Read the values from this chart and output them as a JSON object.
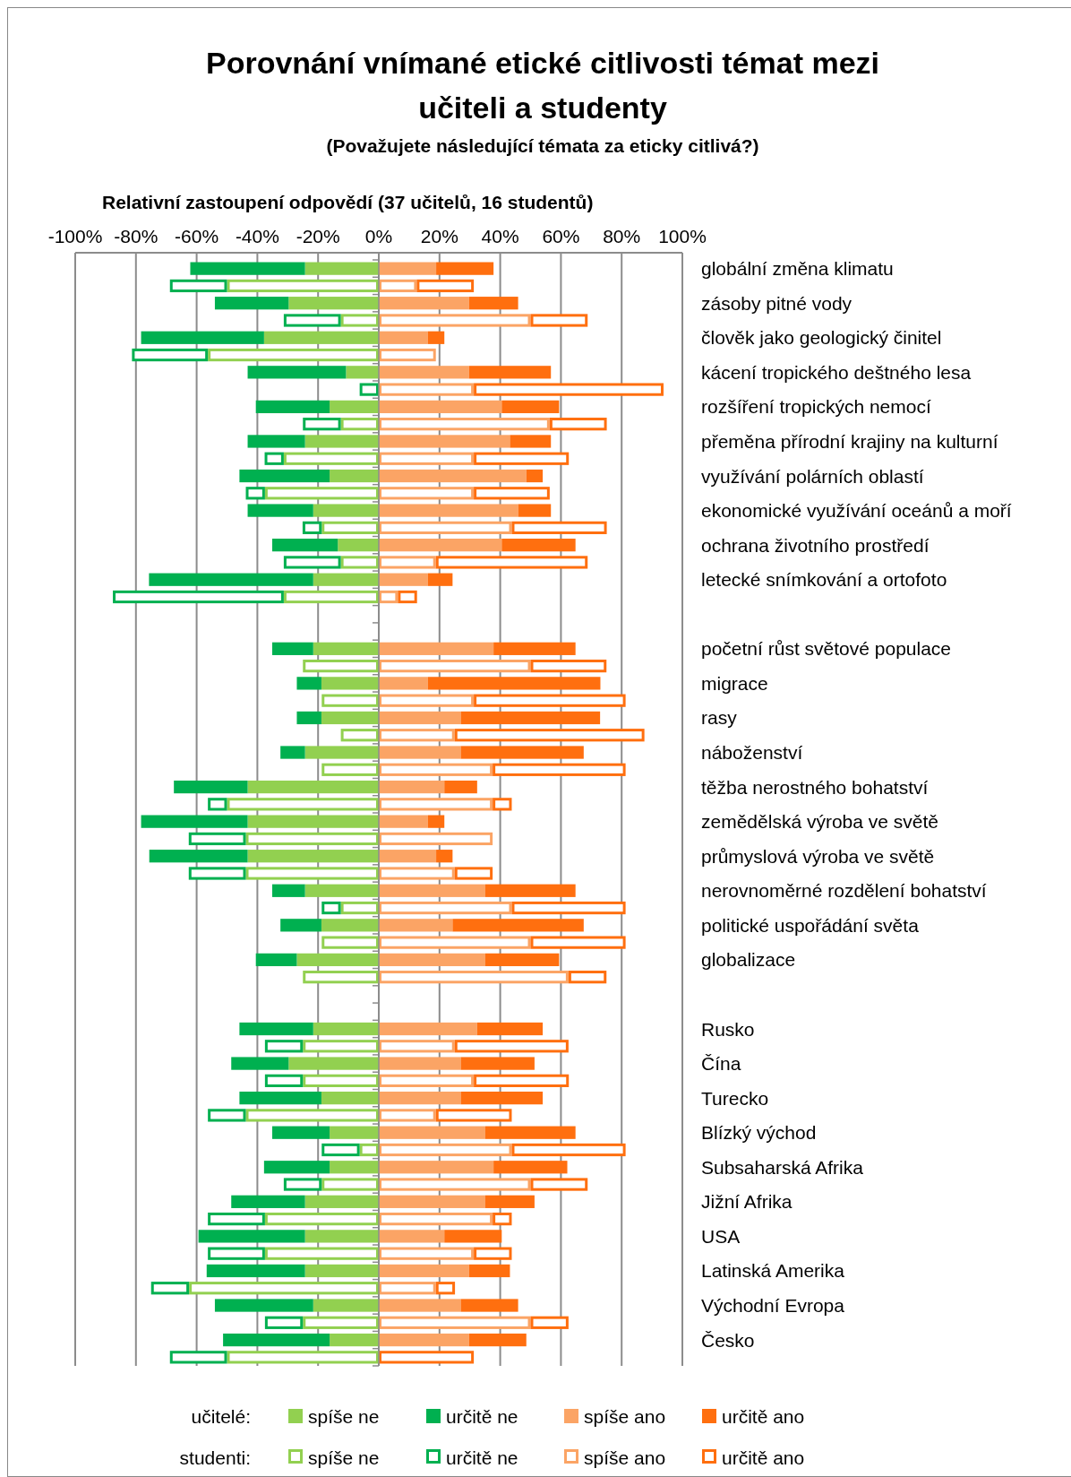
{
  "chart_data": {
    "type": "bar",
    "orientation": "horizontal",
    "stacked": true,
    "title": "Porovnání vnímané etické citlivosti témat mezi učiteli a studenty",
    "subtitle": "(Považujete následující témata za eticky citlivá?)",
    "xlabel": "Relativní zastoupení odpovědí (37 učitelů, 16 studentů)",
    "annotations": [
      "učitelé:",
      "studenti:"
    ],
    "categories": [
      "globální změna klimatu",
      null,
      "zásoby pitné vody",
      null,
      "člověk jako geologický činitel",
      null,
      "kácení tropického deštného lesa",
      null,
      "rozšíření tropických nemocí",
      null,
      "přeměna přírodní krajiny na kulturní",
      null,
      "využívání polárních oblastí",
      null,
      "ekonomické využívání oceánů a moří",
      null,
      "ochrana životního prostředí",
      null,
      "letecké snímkování a ortofoto",
      null,
      null,
      null,
      "početní růst světové populace",
      null,
      "migrace",
      null,
      "rasy",
      null,
      "náboženství",
      null,
      "těžba nerostného bohatství",
      null,
      "zemědělská výroba ve světě",
      null,
      "průmyslová výroba ve světě",
      null,
      "nerovnoměrné rozdělení bohatství",
      null,
      "politické uspořádání světa",
      null,
      "globalizace",
      null,
      null,
      null,
      "Rusko",
      null,
      "Čína",
      null,
      "Turecko",
      null,
      "Blízký východ",
      null,
      "Subsaharská Afrika",
      null,
      "Jižní Afrika",
      null,
      "USA",
      null,
      "Latinská Amerika",
      null,
      "Východní Evropa",
      null,
      "Česko",
      null
    ],
    "series": [
      {
        "name": "spíše ne",
        "color": "#92d050",
        "values": [
          -24.3,
          null,
          -29.7,
          null,
          -37.8,
          null,
          -10.8,
          null,
          -16.2,
          null,
          -24.3,
          null,
          -16.2,
          null,
          -21.6,
          null,
          -13.5,
          null,
          -21.6,
          null,
          null,
          null,
          -21.6,
          null,
          -18.9,
          null,
          -18.9,
          null,
          -24.3,
          null,
          -43.2,
          null,
          -43.2,
          null,
          -43.2,
          null,
          -24.3,
          null,
          -18.9,
          null,
          -27.0,
          null,
          null,
          null,
          -21.6,
          null,
          -29.7,
          null,
          -18.9,
          null,
          -16.2,
          null,
          -16.2,
          null,
          -24.3,
          null,
          -24.3,
          null,
          -24.3,
          null,
          -21.6,
          null,
          -16.2,
          null
        ]
      },
      {
        "name": "určitě ne",
        "color": "#00b050",
        "values": [
          -37.8,
          null,
          -24.3,
          null,
          -40.5,
          null,
          -32.4,
          null,
          -24.3,
          null,
          -18.9,
          null,
          -29.7,
          null,
          -21.6,
          null,
          -21.6,
          null,
          -54.1,
          null,
          null,
          null,
          -13.5,
          null,
          -8.1,
          null,
          -8.1,
          null,
          -8.1,
          null,
          -24.3,
          null,
          -35.1,
          null,
          -32.4,
          null,
          -10.8,
          null,
          -13.5,
          null,
          -13.5,
          null,
          null,
          null,
          -24.3,
          null,
          -18.9,
          null,
          -27.0,
          null,
          -18.9,
          null,
          -21.6,
          null,
          -24.3,
          null,
          -35.1,
          null,
          -32.4,
          null,
          -32.4,
          null,
          -35.1,
          null
        ]
      },
      {
        "name": "spíše ano",
        "color": "#fba465",
        "values": [
          18.9,
          null,
          29.7,
          null,
          16.2,
          null,
          29.7,
          null,
          40.5,
          null,
          43.2,
          null,
          48.6,
          null,
          45.9,
          null,
          40.5,
          null,
          16.2,
          null,
          null,
          null,
          37.8,
          null,
          16.2,
          null,
          27.0,
          null,
          27.0,
          null,
          21.6,
          null,
          16.2,
          null,
          18.9,
          null,
          35.1,
          null,
          24.3,
          null,
          35.1,
          null,
          null,
          null,
          32.4,
          null,
          27.0,
          null,
          27.0,
          null,
          35.1,
          null,
          37.8,
          null,
          35.1,
          null,
          21.6,
          null,
          29.7,
          null,
          27.0,
          null,
          29.7,
          null
        ]
      },
      {
        "name": "určitě ano",
        "color": "#ff6f0f",
        "values": [
          18.9,
          null,
          16.2,
          null,
          5.4,
          null,
          27.0,
          null,
          18.9,
          null,
          13.5,
          null,
          5.4,
          null,
          10.8,
          null,
          24.3,
          null,
          8.1,
          null,
          null,
          null,
          27.0,
          null,
          56.8,
          null,
          45.9,
          null,
          40.5,
          null,
          10.8,
          null,
          5.4,
          null,
          5.4,
          null,
          29.7,
          null,
          43.2,
          null,
          24.3,
          null,
          null,
          null,
          21.6,
          null,
          24.3,
          null,
          27.0,
          null,
          29.7,
          null,
          24.3,
          null,
          16.2,
          null,
          18.9,
          null,
          13.5,
          null,
          18.9,
          null,
          18.9,
          null
        ]
      },
      {
        "name": "spíše ne",
        "color": "#92d050",
        "values": [
          null,
          -50,
          null,
          -12.5,
          null,
          -56.3,
          null,
          0,
          null,
          -12.5,
          null,
          -31.3,
          null,
          -37.5,
          null,
          -18.8,
          null,
          -12.5,
          null,
          -31.3,
          null,
          null,
          null,
          -25,
          null,
          -18.8,
          null,
          -12.5,
          null,
          -18.8,
          null,
          -50,
          null,
          -43.8,
          null,
          -43.8,
          null,
          -12.5,
          null,
          -18.8,
          null,
          -25,
          null,
          null,
          null,
          -25,
          null,
          -25,
          null,
          -43.8,
          null,
          -6.3,
          null,
          -18.8,
          null,
          -37.5,
          null,
          -37.5,
          null,
          -62.5,
          null,
          -25,
          null,
          -50
        ]
      },
      {
        "name": "určitě ne",
        "color": "#00b050",
        "values": [
          null,
          -18.8,
          null,
          -18.8,
          null,
          -25,
          null,
          -6.3,
          null,
          -12.5,
          null,
          -6.3,
          null,
          -6.3,
          null,
          -6.3,
          null,
          -18.8,
          null,
          -56.3,
          null,
          null,
          null,
          0,
          null,
          0,
          null,
          0,
          null,
          0,
          null,
          -6.3,
          null,
          -18.8,
          null,
          -18.8,
          null,
          -6.3,
          null,
          0,
          null,
          0,
          null,
          null,
          null,
          -12.5,
          null,
          -12.5,
          null,
          -12.5,
          null,
          -12.5,
          null,
          -12.5,
          null,
          -18.8,
          null,
          -18.8,
          null,
          -12.5,
          null,
          -12.5,
          null,
          -18.8
        ]
      },
      {
        "name": "spíše ano",
        "color": "#fba465",
        "values": [
          null,
          12.5,
          null,
          50,
          null,
          18.8,
          null,
          31.3,
          null,
          56.3,
          null,
          31.3,
          null,
          31.3,
          null,
          43.8,
          null,
          18.8,
          null,
          6.3,
          null,
          null,
          null,
          50,
          null,
          31.3,
          null,
          25,
          null,
          37.5,
          null,
          37.5,
          null,
          37.5,
          null,
          25,
          null,
          43.8,
          null,
          50,
          null,
          62.5,
          null,
          null,
          null,
          25,
          null,
          31.3,
          null,
          18.8,
          null,
          43.8,
          null,
          50,
          null,
          37.5,
          null,
          31.3,
          null,
          18.8,
          null,
          50,
          null,
          0
        ]
      },
      {
        "name": "určitě ano",
        "color": "#ff6f0f",
        "values": [
          null,
          18.8,
          null,
          18.8,
          null,
          0,
          null,
          62.5,
          null,
          18.8,
          null,
          31.3,
          null,
          25,
          null,
          31.3,
          null,
          50,
          null,
          6.3,
          null,
          null,
          null,
          25,
          null,
          50,
          null,
          62.5,
          null,
          43.8,
          null,
          6.3,
          null,
          0,
          null,
          12.5,
          null,
          37.5,
          null,
          31.3,
          null,
          12.5,
          null,
          null,
          null,
          37.5,
          null,
          31.3,
          null,
          25,
          null,
          37.5,
          null,
          18.8,
          null,
          6.3,
          null,
          12.5,
          null,
          6.3,
          null,
          12.5,
          null,
          31.3
        ]
      }
    ],
    "xlim": [
      -100,
      100
    ],
    "xticks": [
      {
        "value": -100,
        "label": "-100%"
      },
      {
        "value": -80,
        "label": "-80%"
      },
      {
        "value": -60,
        "label": "-60%"
      },
      {
        "value": -40,
        "label": "-40%"
      },
      {
        "value": -20,
        "label": "-20%"
      },
      {
        "value": 0,
        "label": "0%"
      },
      {
        "value": 20,
        "label": "20%"
      },
      {
        "value": 40,
        "label": "40%"
      },
      {
        "value": 60,
        "label": "60%"
      },
      {
        "value": 80,
        "label": "80%"
      },
      {
        "value": 100,
        "label": "100%"
      }
    ],
    "grid": "x",
    "legend": "bottom"
  }
}
